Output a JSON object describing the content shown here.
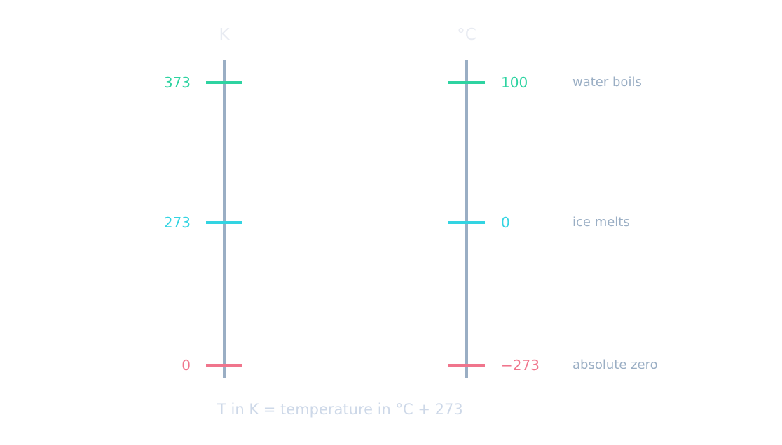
{
  "scales": {
    "kelvin": {
      "unit_label": "K"
    },
    "celsius": {
      "unit_label": "°C"
    }
  },
  "rows": [
    {
      "kelvin": "373",
      "celsius": "100",
      "description": "water boils",
      "color": "#2ed3a1"
    },
    {
      "kelvin": "273",
      "celsius": "0",
      "description": "ice melts",
      "color": "#33d4e2"
    },
    {
      "kelvin": "0",
      "celsius": "−273",
      "description": "absolute zero",
      "color": "#f0758c"
    }
  ],
  "formula": "T in K = temperature in °C + 273",
  "colors": {
    "axis": "#9aaec4",
    "title": "#e8ebf2",
    "description": "#9aaec4",
    "formula": "#cdd8e8"
  }
}
